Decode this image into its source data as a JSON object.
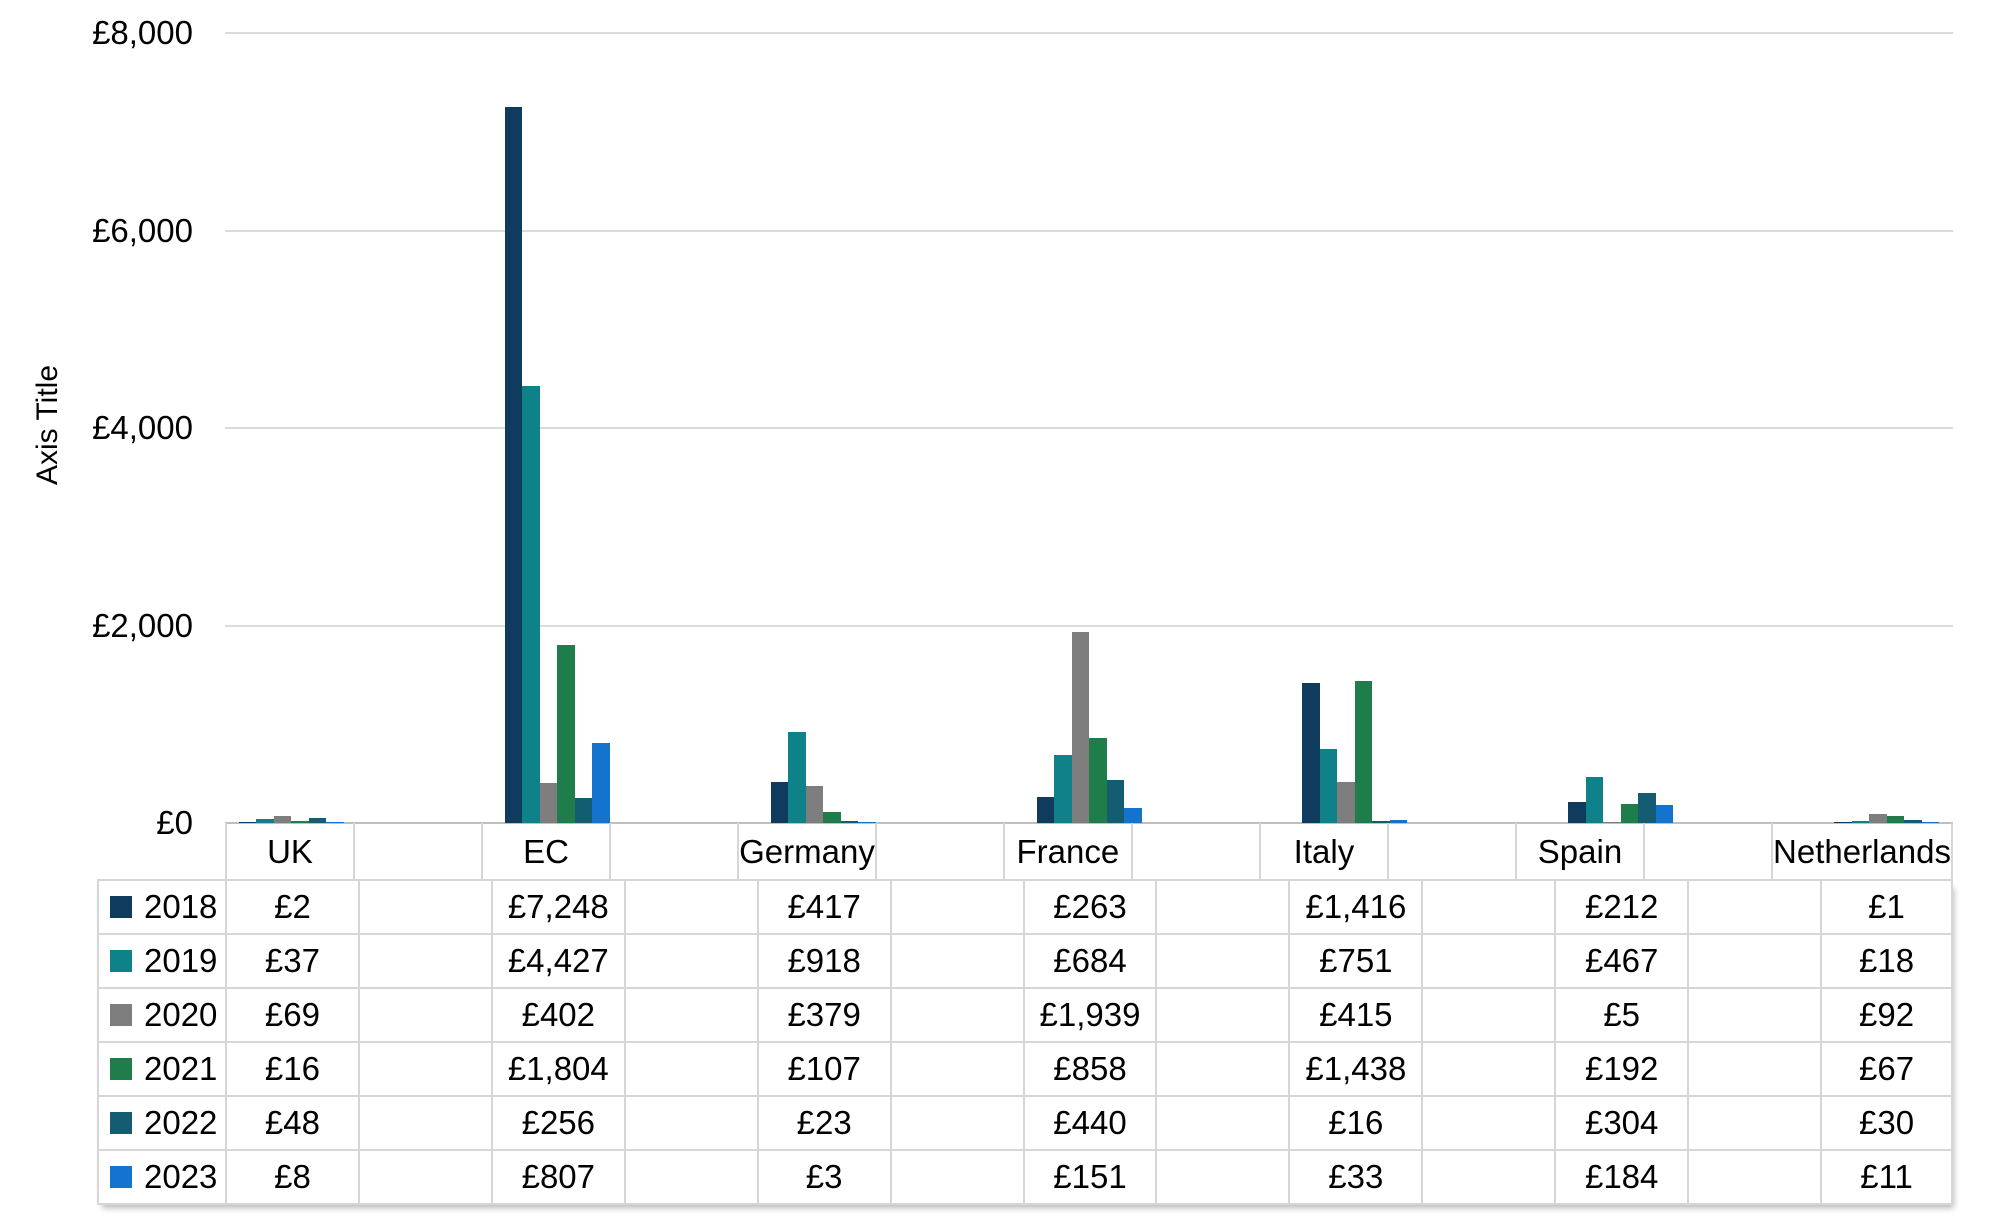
{
  "chart_data": {
    "type": "bar",
    "title": "",
    "y_axis_title": "Axis Title",
    "currency_prefix": "£",
    "categories": [
      "UK",
      "EC",
      "Germany",
      "France",
      "Italy",
      "Spain",
      "Netherlands"
    ],
    "series": [
      {
        "name": "2018",
        "color": "#0e3b5e",
        "values": [
          2,
          7248,
          417,
          263,
          1416,
          212,
          1
        ],
        "display": [
          "£2",
          "£7,248",
          "£417",
          "£263",
          "£1,416",
          "£212",
          "£1"
        ]
      },
      {
        "name": "2019",
        "color": "#0f8289",
        "values": [
          37,
          4427,
          918,
          684,
          751,
          467,
          18
        ],
        "display": [
          "£37",
          "£4,427",
          "£918",
          "£684",
          "£751",
          "£467",
          "£18"
        ]
      },
      {
        "name": "2020",
        "color": "#7e7e7e",
        "values": [
          69,
          402,
          379,
          1939,
          415,
          5,
          92
        ],
        "display": [
          "£69",
          "£402",
          "£379",
          "£1,939",
          "£415",
          "£5",
          "£92"
        ]
      },
      {
        "name": "2021",
        "color": "#1f7c4b",
        "values": [
          16,
          1804,
          107,
          858,
          1438,
          192,
          67
        ],
        "display": [
          "£16",
          "£1,804",
          "£107",
          "£858",
          "£1,438",
          "£192",
          "£67"
        ]
      },
      {
        "name": "2022",
        "color": "#135c72",
        "values": [
          48,
          256,
          23,
          440,
          16,
          304,
          30
        ],
        "display": [
          "£48",
          "£256",
          "£23",
          "£440",
          "£16",
          "£304",
          "£30"
        ]
      },
      {
        "name": "2023",
        "color": "#1573d0",
        "values": [
          8,
          807,
          3,
          151,
          33,
          184,
          11
        ],
        "display": [
          "£8",
          "£807",
          "£3",
          "£151",
          "£33",
          "£184",
          "£11"
        ]
      }
    ],
    "y_ticks": [
      "£0",
      "£2,000",
      "£4,000",
      "£6,000",
      "£8,000"
    ],
    "ylim": [
      0,
      8000
    ],
    "grid": true,
    "legend_position": "data-table-left-column",
    "data_table_shown": true
  }
}
